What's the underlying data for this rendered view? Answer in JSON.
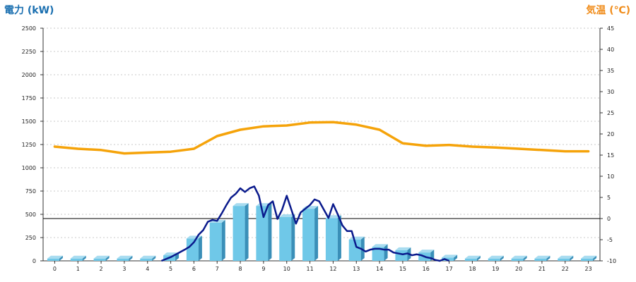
{
  "chart_data": {
    "type": "bar+line",
    "title_left": "電力 (kW)",
    "title_right": "気温 (℃)",
    "x": [
      "0",
      "1",
      "2",
      "3",
      "4",
      "5",
      "6",
      "7",
      "8",
      "9",
      "10",
      "11",
      "12",
      "13",
      "14",
      "15",
      "16",
      "17",
      "18",
      "19",
      "20",
      "21",
      "22",
      "23"
    ],
    "y_left": {
      "min": 0,
      "max": 2500,
      "ticks": [
        "0",
        "250",
        "500",
        "750",
        "1000",
        "1250",
        "1500",
        "1750",
        "2000",
        "2250",
        "2500"
      ]
    },
    "y_right": {
      "min": -10,
      "max": 45,
      "ticks": [
        "-10",
        "-5",
        "0",
        "5",
        "10",
        "15",
        "20",
        "25",
        "30",
        "35",
        "40",
        "45"
      ]
    },
    "grid": "horizontal dashed",
    "series": [
      {
        "kind": "bar",
        "axis": "left",
        "color": "#6fc8e8",
        "values": [
          25,
          25,
          25,
          25,
          25,
          60,
          240,
          410,
          590,
          590,
          470,
          560,
          460,
          230,
          150,
          115,
          90,
          35,
          25,
          25,
          25,
          25,
          25,
          25
        ]
      },
      {
        "kind": "line",
        "axis": "left",
        "color": "#0a1a8c",
        "x": [
          4.6,
          5,
          5.3,
          5.6,
          5.8,
          6,
          6.2,
          6.4,
          6.6,
          6.8,
          7,
          7.2,
          7.4,
          7.6,
          7.8,
          8,
          8.2,
          8.4,
          8.6,
          8.8,
          9,
          9.2,
          9.4,
          9.6,
          9.8,
          10,
          10.2,
          10.4,
          10.6,
          10.8,
          11,
          11.2,
          11.4,
          11.6,
          11.8,
          12,
          12.2,
          12.4,
          12.6,
          12.8,
          13,
          13.2,
          13.4,
          13.6,
          13.8,
          14,
          14.2,
          14.4,
          14.6,
          14.8,
          15,
          15.2,
          15.4,
          15.6,
          15.8,
          16,
          16.2,
          16.4,
          16.6,
          16.8,
          17
        ],
        "values": [
          0,
          40,
          80,
          120,
          150,
          200,
          280,
          330,
          420,
          440,
          430,
          510,
          600,
          680,
          720,
          780,
          740,
          780,
          800,
          700,
          470,
          600,
          640,
          450,
          550,
          700,
          550,
          400,
          520,
          560,
          600,
          660,
          640,
          550,
          460,
          610,
          500,
          380,
          320,
          320,
          150,
          130,
          100,
          120,
          130,
          130,
          120,
          120,
          90,
          80,
          70,
          80,
          60,
          70,
          60,
          40,
          30,
          10,
          0,
          20,
          0
        ]
      },
      {
        "kind": "line",
        "axis": "right",
        "color": "#f5a30a",
        "values": [
          17,
          16.5,
          16.2,
          15.4,
          15.6,
          15.8,
          16.5,
          19.5,
          21.0,
          21.8,
          22.0,
          22.7,
          22.8,
          22.2,
          21.0,
          17.8,
          17.2,
          17.4,
          17.0,
          16.8,
          16.5,
          16.2,
          15.9,
          15.9
        ]
      }
    ]
  }
}
